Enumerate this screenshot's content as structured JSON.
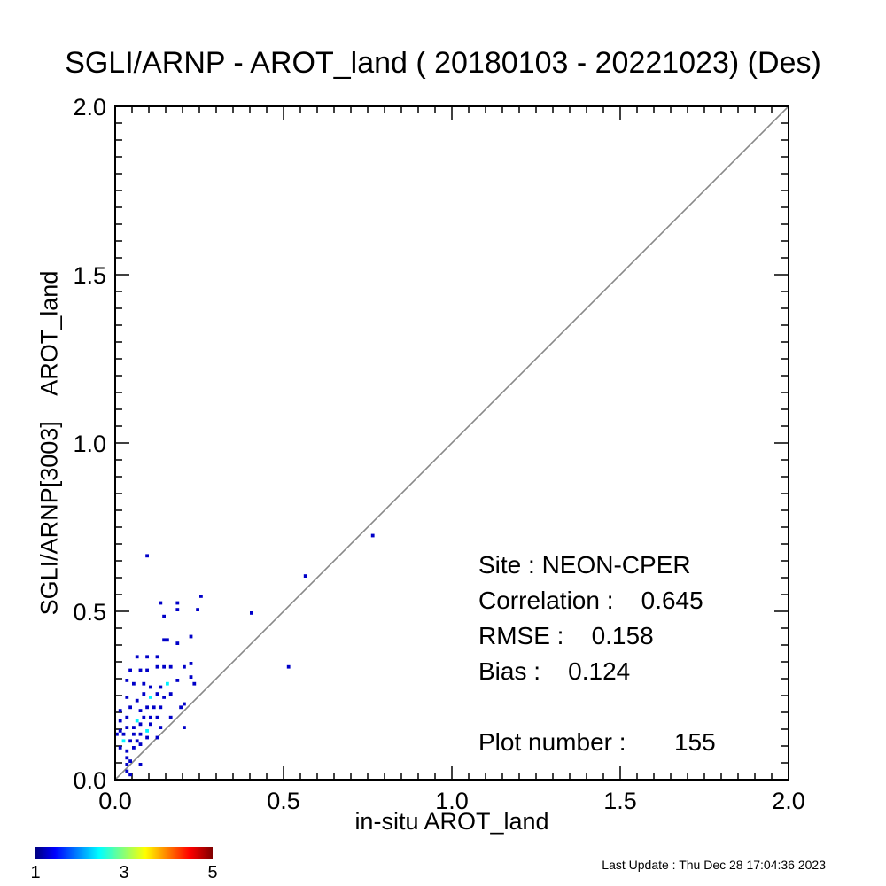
{
  "chart_data": {
    "type": "scatter",
    "title": "SGLI/ARNP - AROT_land ( 20180103 - 20221023) (Des)",
    "xlabel": "in-situ AROT_land",
    "ylabel": "SGLI/ARNP[3003]    AROT_land",
    "xlim": [
      0.0,
      2.0
    ],
    "ylim": [
      0.0,
      2.0
    ],
    "x_ticks": [
      "0.0",
      "0.5",
      "1.0",
      "1.5",
      "2.0"
    ],
    "y_ticks": [
      "0.0",
      "0.5",
      "1.0",
      "1.5",
      "2.0"
    ],
    "reference_line": "1:1",
    "colorbar": {
      "ticks": [
        "1",
        "3",
        "5"
      ],
      "range": [
        1,
        5
      ],
      "colormap": "jet"
    },
    "points": [
      [
        0.76,
        0.72,
        1
      ],
      [
        0.56,
        0.6,
        1
      ],
      [
        0.51,
        0.33,
        1
      ],
      [
        0.4,
        0.49,
        1
      ],
      [
        0.09,
        0.66,
        1
      ],
      [
        0.25,
        0.54,
        1
      ],
      [
        0.24,
        0.5,
        1
      ],
      [
        0.18,
        0.52,
        1
      ],
      [
        0.18,
        0.5,
        1
      ],
      [
        0.13,
        0.52,
        1
      ],
      [
        0.14,
        0.48,
        1
      ],
      [
        0.22,
        0.42,
        1
      ],
      [
        0.18,
        0.4,
        1
      ],
      [
        0.15,
        0.41,
        1
      ],
      [
        0.14,
        0.41,
        1
      ],
      [
        0.12,
        0.36,
        1
      ],
      [
        0.09,
        0.36,
        1
      ],
      [
        0.06,
        0.36,
        1
      ],
      [
        0.22,
        0.34,
        1
      ],
      [
        0.2,
        0.33,
        1
      ],
      [
        0.16,
        0.33,
        1
      ],
      [
        0.14,
        0.33,
        1
      ],
      [
        0.12,
        0.33,
        1
      ],
      [
        0.09,
        0.32,
        1
      ],
      [
        0.07,
        0.32,
        1
      ],
      [
        0.04,
        0.32,
        1
      ],
      [
        0.22,
        0.3,
        1
      ],
      [
        0.23,
        0.28,
        1
      ],
      [
        0.18,
        0.29,
        1
      ],
      [
        0.15,
        0.28,
        2
      ],
      [
        0.13,
        0.27,
        1
      ],
      [
        0.1,
        0.27,
        1
      ],
      [
        0.08,
        0.28,
        1
      ],
      [
        0.05,
        0.28,
        1
      ],
      [
        0.03,
        0.29,
        1
      ],
      [
        0.16,
        0.25,
        1
      ],
      [
        0.14,
        0.24,
        1
      ],
      [
        0.12,
        0.25,
        1
      ],
      [
        0.1,
        0.24,
        2
      ],
      [
        0.08,
        0.25,
        1
      ],
      [
        0.06,
        0.23,
        1
      ],
      [
        0.03,
        0.24,
        1
      ],
      [
        0.2,
        0.22,
        1
      ],
      [
        0.19,
        0.21,
        1
      ],
      [
        0.13,
        0.21,
        1
      ],
      [
        0.11,
        0.21,
        1
      ],
      [
        0.09,
        0.21,
        1
      ],
      [
        0.07,
        0.2,
        1
      ],
      [
        0.04,
        0.21,
        1
      ],
      [
        0.01,
        0.2,
        1
      ],
      [
        0.16,
        0.18,
        1
      ],
      [
        0.12,
        0.18,
        1
      ],
      [
        0.1,
        0.18,
        1
      ],
      [
        0.08,
        0.18,
        1
      ],
      [
        0.06,
        0.17,
        2
      ],
      [
        0.03,
        0.18,
        1
      ],
      [
        0.01,
        0.17,
        1
      ],
      [
        0.2,
        0.15,
        1
      ],
      [
        0.13,
        0.15,
        1
      ],
      [
        0.1,
        0.16,
        1
      ],
      [
        0.07,
        0.16,
        1
      ],
      [
        0.05,
        0.15,
        1
      ],
      [
        0.03,
        0.15,
        1
      ],
      [
        0.01,
        0.14,
        1
      ],
      [
        0.09,
        0.14,
        2
      ],
      [
        0.07,
        0.13,
        1
      ],
      [
        0.05,
        0.13,
        1
      ],
      [
        0.02,
        0.13,
        1
      ],
      [
        0.0,
        0.13,
        1
      ],
      [
        0.12,
        0.12,
        1
      ],
      [
        0.09,
        0.12,
        1
      ],
      [
        0.06,
        0.11,
        1
      ],
      [
        0.04,
        0.11,
        1
      ],
      [
        0.02,
        0.11,
        2
      ],
      [
        0.07,
        0.1,
        1
      ],
      [
        0.05,
        0.09,
        1
      ],
      [
        0.03,
        0.08,
        1
      ],
      [
        0.01,
        0.09,
        1
      ],
      [
        0.03,
        0.06,
        1
      ],
      [
        0.04,
        0.05,
        1
      ],
      [
        0.03,
        0.04,
        1
      ],
      [
        0.07,
        0.04,
        1
      ],
      [
        0.03,
        0.02,
        1
      ],
      [
        0.04,
        0.01,
        1
      ]
    ]
  },
  "stats": {
    "site": "Site : NEON-CPER",
    "correlation": "Correlation :    0.645",
    "rmse": "RMSE :    0.158",
    "bias": "Bias :    0.124",
    "plot_number": "Plot number :       155"
  },
  "footer": {
    "last_update": "Last Update : Thu Dec 28 17:04:36 2023"
  }
}
